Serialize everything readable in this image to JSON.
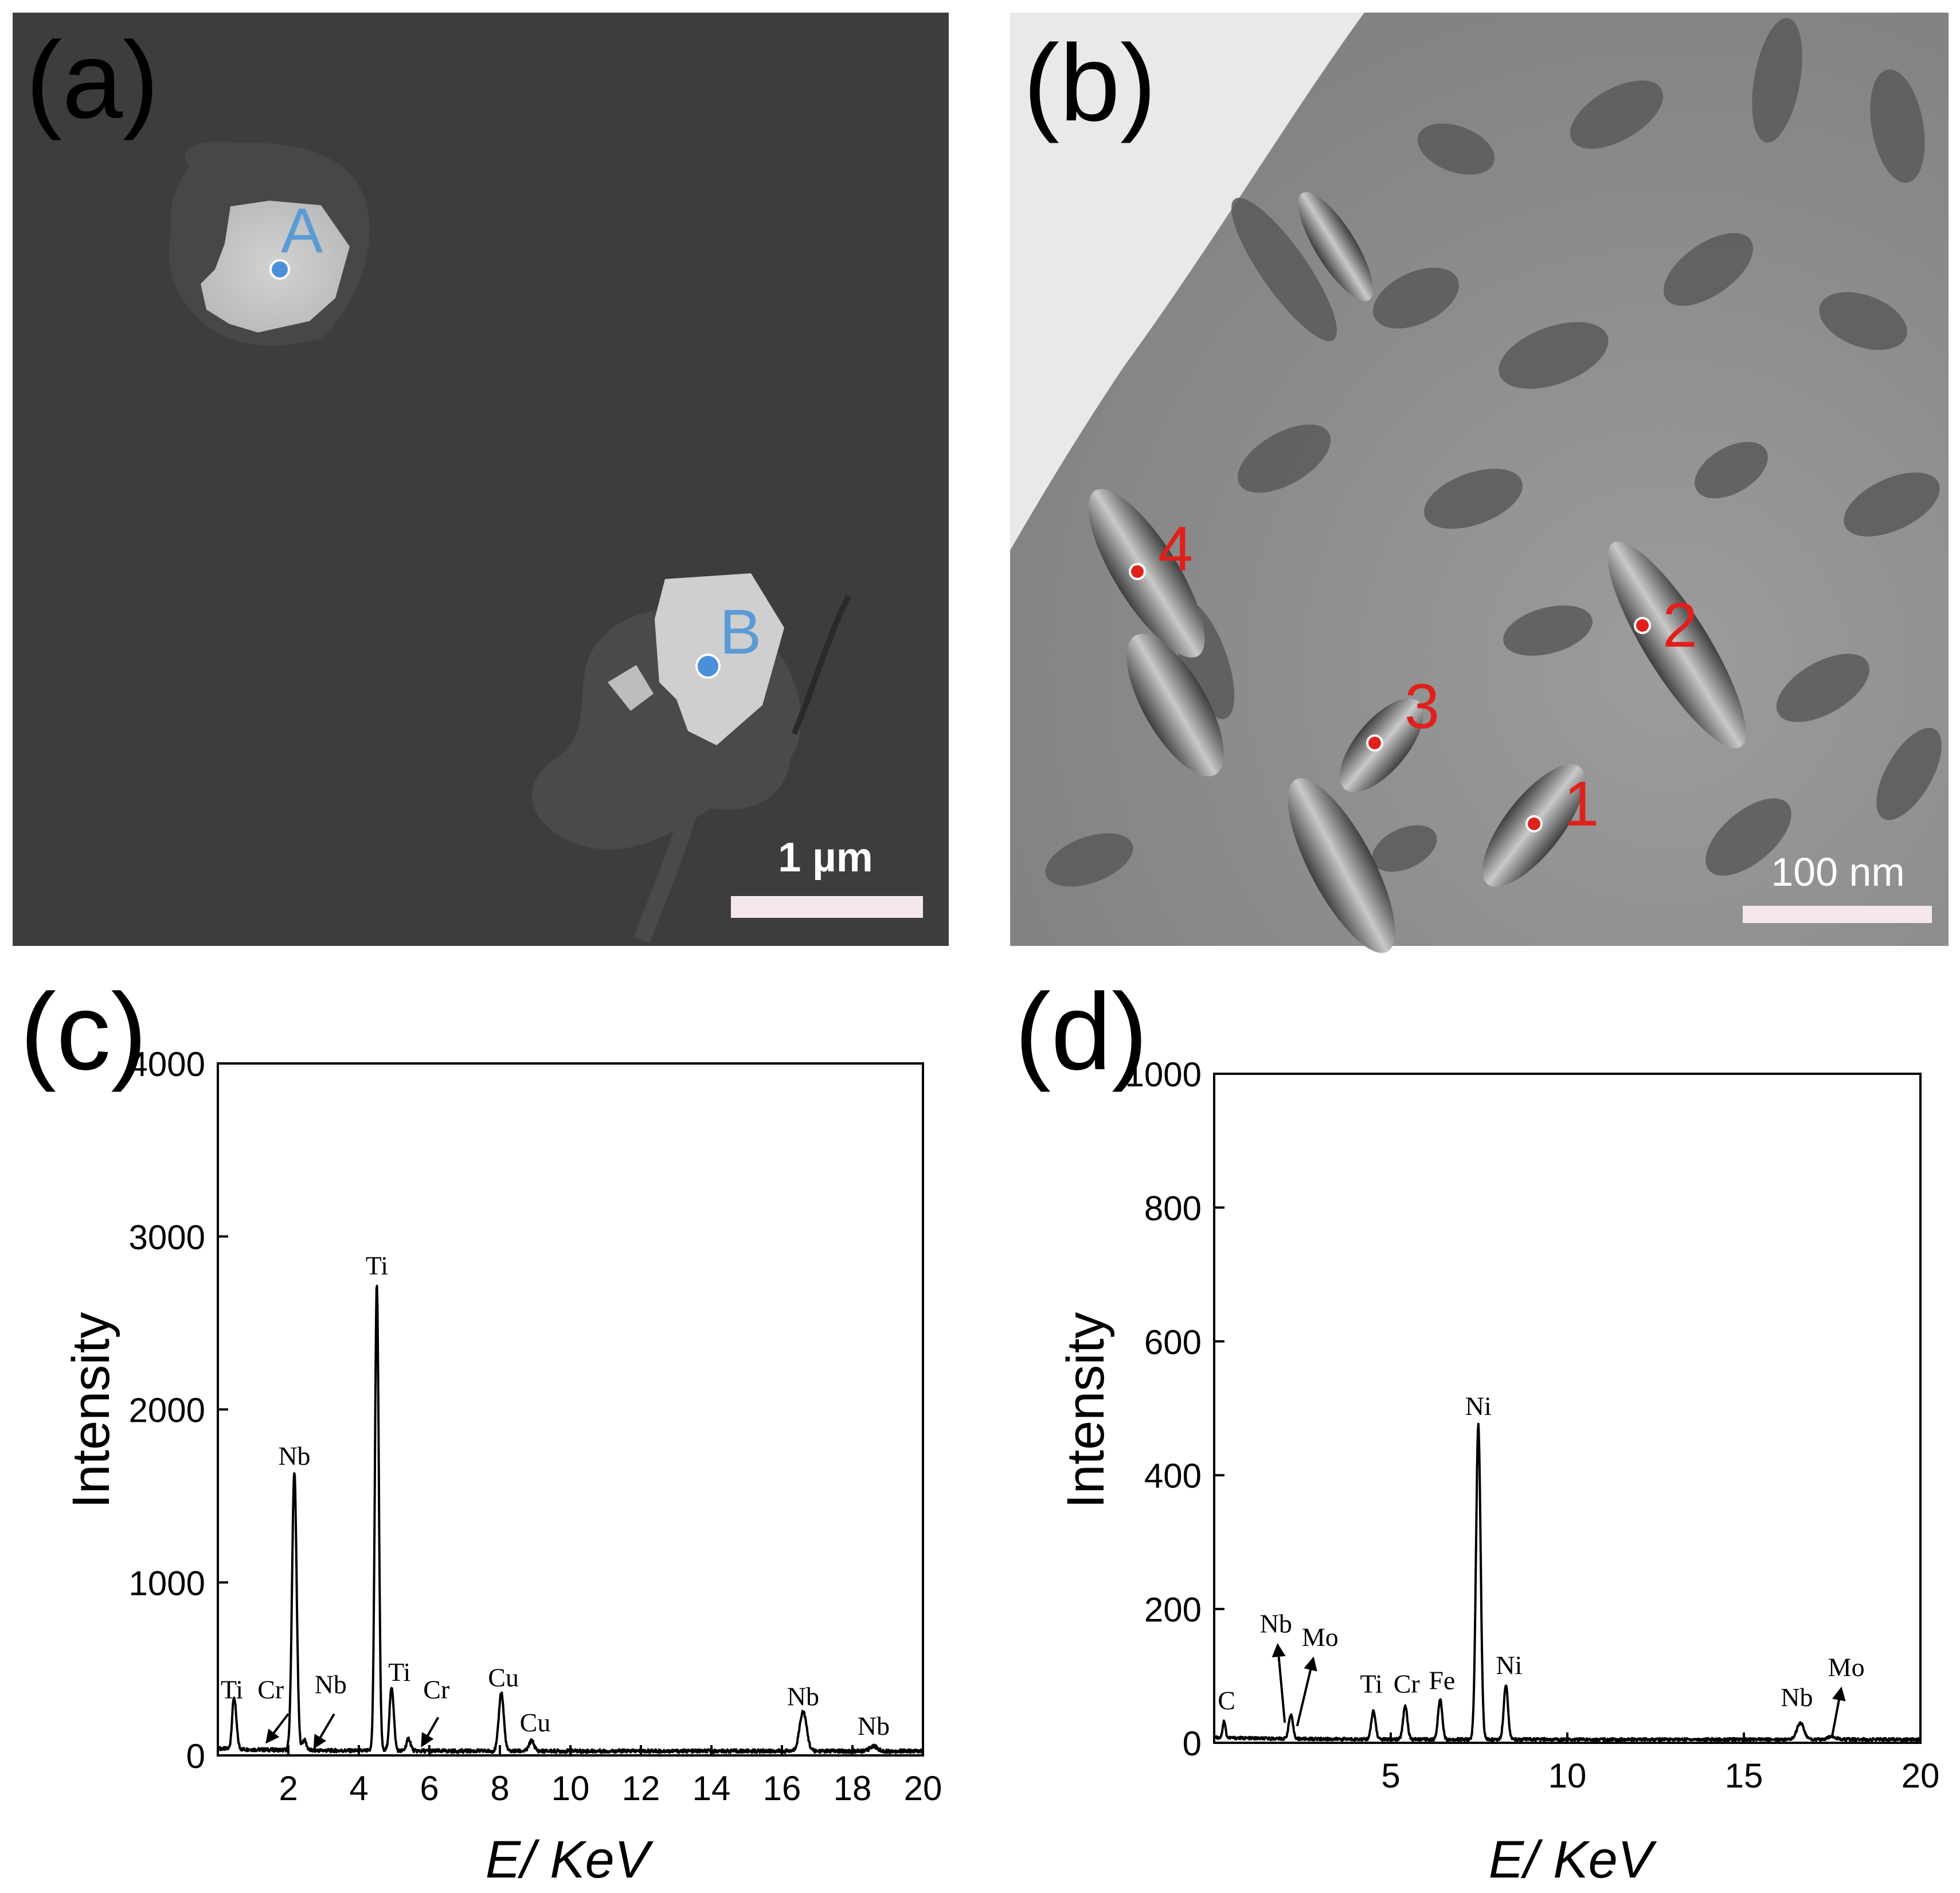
{
  "panels": {
    "a": {
      "label": "(a)",
      "scale_bar": "1 µm",
      "points": [
        {
          "id": "A",
          "color": "#4a90d9"
        },
        {
          "id": "B",
          "color": "#4a90d9"
        }
      ]
    },
    "b": {
      "label": "(b)",
      "scale_bar": "100 nm",
      "points": [
        {
          "id": "1",
          "color": "#e0201b"
        },
        {
          "id": "2",
          "color": "#e0201b"
        },
        {
          "id": "3",
          "color": "#e0201b"
        },
        {
          "id": "4",
          "color": "#e0201b"
        }
      ]
    }
  },
  "chart_data": [
    {
      "panel_label": "(c)",
      "type": "line",
      "xlabel": "E/ KeV",
      "ylabel": "Intensity",
      "xlim": [
        0,
        20
      ],
      "ylim": [
        0,
        4000
      ],
      "xticks": [
        2,
        4,
        6,
        8,
        10,
        12,
        14,
        16,
        18,
        20
      ],
      "yticks": [
        0,
        1000,
        2000,
        3000,
        4000
      ],
      "grid": false,
      "baseline": 25,
      "peaks": [
        {
          "x": 0.45,
          "y": 260,
          "w": 0.05
        },
        {
          "x": 0.52,
          "y": 90,
          "w": 0.05
        },
        {
          "x": 2.17,
          "y": 1610,
          "w": 0.065
        },
        {
          "x": 2.45,
          "y": 60,
          "w": 0.06
        },
        {
          "x": 4.51,
          "y": 2700,
          "w": 0.055
        },
        {
          "x": 4.93,
          "y": 370,
          "w": 0.06
        },
        {
          "x": 5.41,
          "y": 70,
          "w": 0.06
        },
        {
          "x": 8.04,
          "y": 340,
          "w": 0.07
        },
        {
          "x": 8.9,
          "y": 60,
          "w": 0.07
        },
        {
          "x": 16.6,
          "y": 230,
          "w": 0.1
        },
        {
          "x": 18.6,
          "y": 30,
          "w": 0.1
        }
      ],
      "annotations": [
        {
          "text": "Ti",
          "x": 0.4,
          "y": 330
        },
        {
          "text": "Cr",
          "x": 1.5,
          "y": 330
        },
        {
          "text": "Nb",
          "x": 2.17,
          "y": 1680
        },
        {
          "text": "Nb",
          "x": 3.2,
          "y": 360
        },
        {
          "text": "Ti",
          "x": 4.51,
          "y": 2780
        },
        {
          "text": "Ti",
          "x": 5.15,
          "y": 430
        },
        {
          "text": "Cr",
          "x": 6.2,
          "y": 330
        },
        {
          "text": "Cu",
          "x": 8.1,
          "y": 400
        },
        {
          "text": "Cu",
          "x": 9.0,
          "y": 140
        },
        {
          "text": "Nb",
          "x": 16.6,
          "y": 290
        },
        {
          "text": "Nb",
          "x": 18.6,
          "y": 120
        }
      ],
      "arrows": [
        {
          "from": [
            2.0,
            240
          ],
          "to": [
            1.4,
            80
          ]
        },
        {
          "from": [
            3.3,
            240
          ],
          "to": [
            2.75,
            50
          ]
        },
        {
          "from": [
            6.25,
            220
          ],
          "to": [
            5.8,
            60
          ]
        }
      ]
    },
    {
      "panel_label": "(d)",
      "type": "line",
      "xlabel": "E/ KeV",
      "ylabel": "Intensity",
      "xlim": [
        0,
        20
      ],
      "ylim": [
        0,
        1000
      ],
      "xticks": [
        5,
        10,
        15,
        20
      ],
      "yticks": [
        0,
        200,
        400,
        600,
        800,
        1000
      ],
      "grid": false,
      "baseline": 5,
      "peaks": [
        {
          "x": 0.28,
          "y": 25,
          "w": 0.04
        },
        {
          "x": 2.17,
          "y": 35,
          "w": 0.06
        },
        {
          "x": 4.51,
          "y": 42,
          "w": 0.06
        },
        {
          "x": 5.41,
          "y": 50,
          "w": 0.06
        },
        {
          "x": 6.4,
          "y": 60,
          "w": 0.06
        },
        {
          "x": 7.48,
          "y": 470,
          "w": 0.065
        },
        {
          "x": 8.26,
          "y": 82,
          "w": 0.06
        },
        {
          "x": 16.6,
          "y": 25,
          "w": 0.1
        },
        {
          "x": 17.5,
          "y": 5,
          "w": 0.1
        }
      ],
      "annotations": [
        {
          "text": "C",
          "x": 0.35,
          "y": 50
        },
        {
          "text": "Nb",
          "x": 1.75,
          "y": 165
        },
        {
          "text": "Mo",
          "x": 3.0,
          "y": 145
        },
        {
          "text": "Ti",
          "x": 4.45,
          "y": 75
        },
        {
          "text": "Cr",
          "x": 5.45,
          "y": 75
        },
        {
          "text": "Fe",
          "x": 6.45,
          "y": 80
        },
        {
          "text": "Ni",
          "x": 7.48,
          "y": 490
        },
        {
          "text": "Ni",
          "x": 8.35,
          "y": 103
        },
        {
          "text": "Nb",
          "x": 16.5,
          "y": 55
        },
        {
          "text": "Mo",
          "x": 17.9,
          "y": 100
        }
      ],
      "arrows": [
        {
          "from": [
            2.0,
            30
          ],
          "to": [
            1.8,
            145
          ]
        },
        {
          "from": [
            2.35,
            25
          ],
          "to": [
            2.8,
            125
          ]
        },
        {
          "from": [
            17.5,
            10
          ],
          "to": [
            17.75,
            80
          ]
        }
      ]
    }
  ]
}
